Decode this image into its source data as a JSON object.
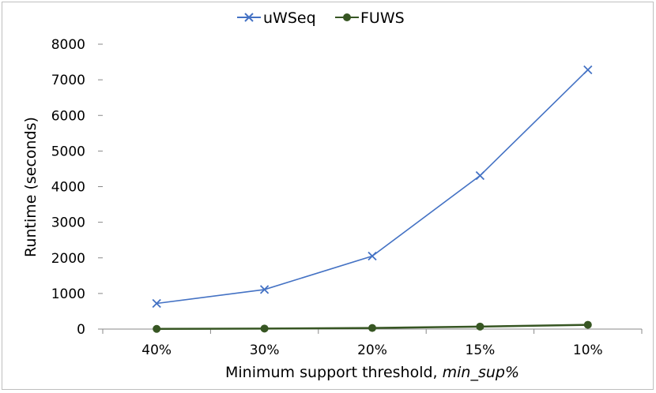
{
  "chart_data": {
    "type": "line",
    "categories": [
      "40%",
      "30%",
      "20%",
      "15%",
      "10%"
    ],
    "series": [
      {
        "name": "uWSeq",
        "values": [
          720,
          1110,
          2050,
          4310,
          7280
        ],
        "color": "#4472c4",
        "marker": "x"
      },
      {
        "name": "FUWS",
        "values": [
          5,
          15,
          30,
          70,
          120
        ],
        "color": "#375623",
        "marker": "circle"
      }
    ],
    "ylim": [
      0,
      8000
    ],
    "yticks": [
      0,
      1000,
      2000,
      3000,
      4000,
      5000,
      6000,
      7000,
      8000
    ],
    "xlabel_prefix": "Minimum support threshold, ",
    "xlabel_italic": "min_sup%",
    "ylabel": "Runtime (seconds)",
    "legend_position": "top-center",
    "grid": false
  }
}
